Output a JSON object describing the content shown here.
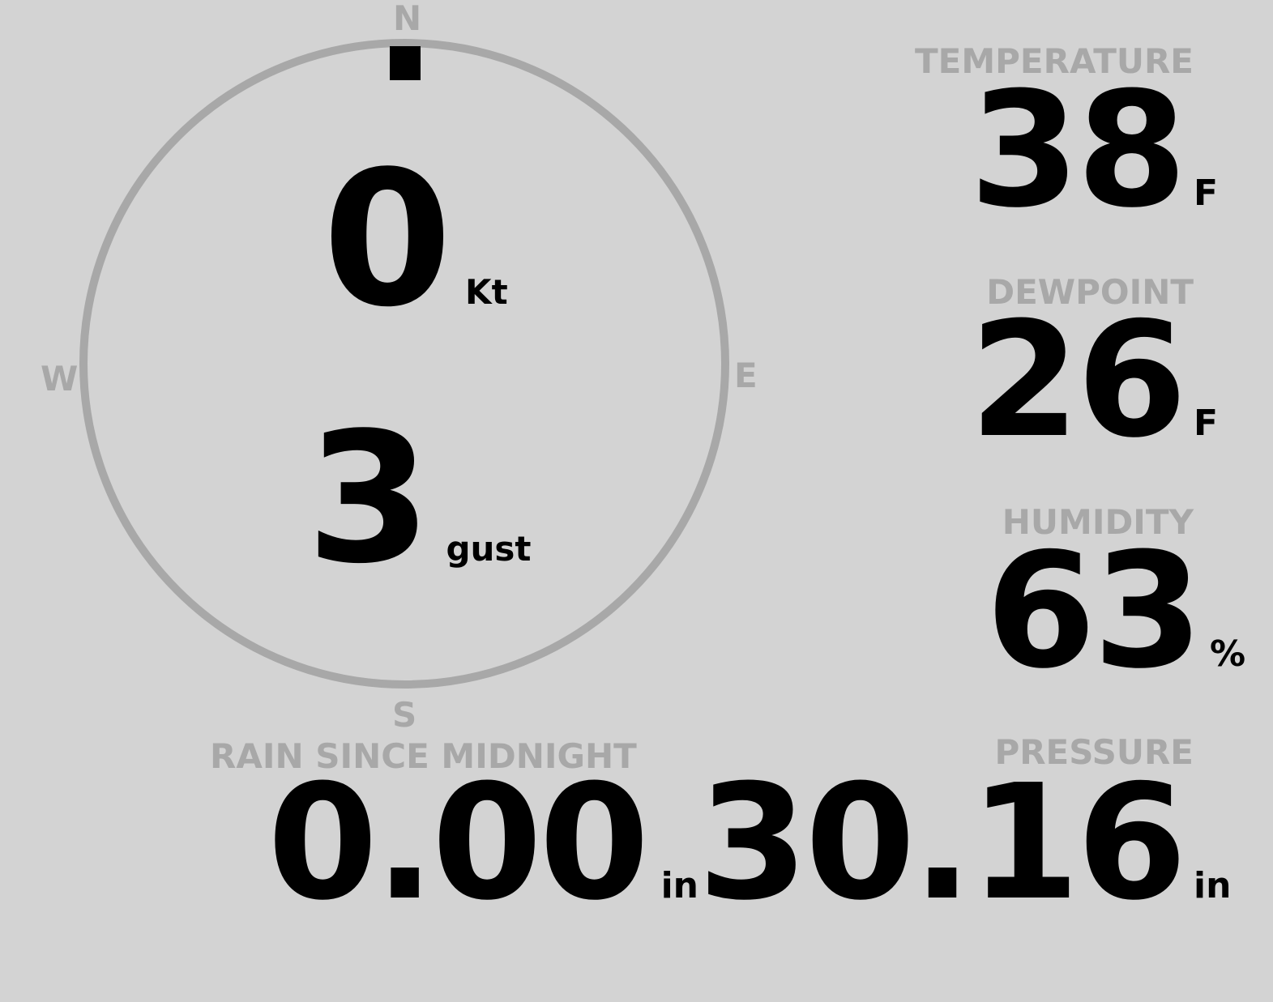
{
  "compass": {
    "north": "N",
    "south": "S",
    "east": "E",
    "west": "W",
    "wind_direction_deg": 0,
    "wind_speed": "0",
    "wind_speed_unit": "Kt",
    "gust": "3",
    "gust_unit": "gust",
    "ring_color": "#a8a8a8",
    "marker_color": "#000000"
  },
  "temperature": {
    "label": "TEMPERATURE",
    "value": "38",
    "unit": "F"
  },
  "dewpoint": {
    "label": "DEWPOINT",
    "value": "26",
    "unit": "F"
  },
  "humidity": {
    "label": "HUMIDITY",
    "value": "63",
    "unit": "%"
  },
  "rain": {
    "label": "RAIN SINCE MIDNIGHT",
    "value": "0.00",
    "unit": "in"
  },
  "pressure": {
    "label": "PRESSURE",
    "value": "30.16",
    "unit": "in"
  },
  "colors": {
    "background": "#d3d3d3",
    "label": "#a8a8a8",
    "value": "#000000"
  }
}
